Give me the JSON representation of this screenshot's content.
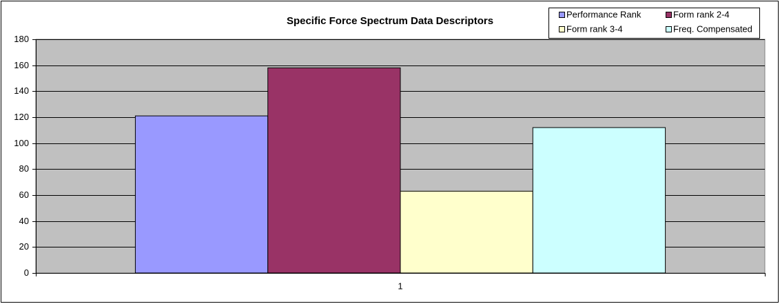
{
  "chart_data": {
    "type": "bar",
    "title": "Specific Force Spectrum Data Descriptors",
    "categories": [
      "1"
    ],
    "series": [
      {
        "name": "Performance Rank",
        "color": "#9999ff",
        "values": [
          121
        ]
      },
      {
        "name": "Form rank 2-4",
        "color": "#993366",
        "values": [
          158
        ]
      },
      {
        "name": "Form rank 3-4",
        "color": "#ffffcc",
        "values": [
          63
        ]
      },
      {
        "name": "Freq. Compensated",
        "color": "#ccffff",
        "values": [
          112
        ]
      }
    ],
    "ylim": [
      0,
      180
    ],
    "yticks": [
      0,
      20,
      40,
      60,
      80,
      100,
      120,
      140,
      160,
      180
    ],
    "grid": true,
    "legend": "top-right"
  }
}
